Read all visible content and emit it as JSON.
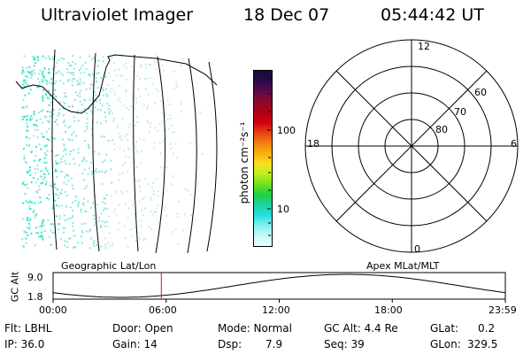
{
  "header": {
    "title": "Ultraviolet Imager",
    "date": "18 Dec 07",
    "time": "05:44:42 UT"
  },
  "colorbar": {
    "label": "photon cm⁻²s⁻¹",
    "ticks": [
      "100",
      "10"
    ],
    "colors": [
      "#1a0a3a",
      "#2a0a4a",
      "#5a0a4a",
      "#8a0a2a",
      "#b00010",
      "#d00010",
      "#e84010",
      "#f08010",
      "#f8b010",
      "#f8e020",
      "#c0f020",
      "#70e020",
      "#20d040",
      "#20d0a0",
      "#20e0e0",
      "#80f0f0",
      "#c8f8f8",
      "#e8ffff"
    ]
  },
  "left_map": {
    "label": "Geographic Lat/Lon"
  },
  "polar": {
    "label": "Apex MLat/MLT",
    "mlt_labels": {
      "top": "12",
      "left": "18",
      "right": "6",
      "bottom": "0"
    },
    "lat_labels": [
      "60",
      "70",
      "80"
    ]
  },
  "altitude_plot": {
    "ylabel": "GC Alt",
    "yticks": [
      "9.0",
      "1.8"
    ],
    "xticks": [
      "00:00",
      "06:00",
      "12:00",
      "18:00",
      "23:59"
    ],
    "marker_time_hours": 5.745,
    "marker_color": "#ff0000"
  },
  "info": {
    "flt": "Flt: LBHL",
    "door": "Door: Open",
    "mode": "Mode: Normal",
    "gc_alt": "GC Alt: 4.4 Re",
    "glat_label": "GLat:",
    "glat_value": "0.2",
    "ip": "IP: 36.0",
    "gain": "Gain: 14",
    "dsp_label": "Dsp:",
    "dsp_value": "7.9",
    "seq": "Seq: 39",
    "glon_label": "GLon:",
    "glon_value": "329.5"
  }
}
